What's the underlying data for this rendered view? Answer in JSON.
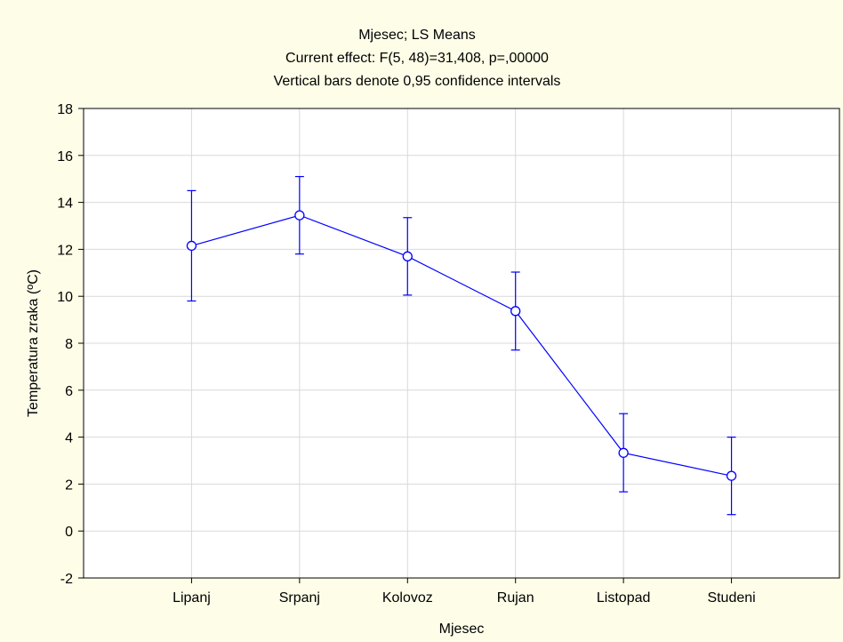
{
  "chart_data": {
    "type": "line",
    "title_lines": [
      "Mjesec; LS Means",
      "Current effect: F(5, 48)=31,408, p=,00000",
      "Vertical bars denote 0,95 confidence intervals"
    ],
    "xlabel": "Mjesec",
    "ylabel": "Temperatura zraka (ºC)",
    "categories": [
      "Lipanj",
      "Srpanj",
      "Kolovoz",
      "Rujan",
      "Listopad",
      "Studeni"
    ],
    "values": [
      12.15,
      13.45,
      11.7,
      9.37,
      3.33,
      2.35
    ],
    "ci_upper": [
      14.5,
      15.1,
      13.35,
      11.03,
      5.0,
      4.0
    ],
    "ci_lower": [
      9.8,
      11.8,
      10.05,
      7.71,
      1.67,
      0.7
    ],
    "ylim": [
      -2,
      18
    ],
    "yticks": [
      -2,
      0,
      2,
      4,
      6,
      8,
      10,
      12,
      14,
      16,
      18
    ],
    "grid": true,
    "series_color": "#0000ff",
    "background_color": "#fefee8",
    "plot_background_color": "#ffffff",
    "grid_color": "#d9d9d9"
  }
}
